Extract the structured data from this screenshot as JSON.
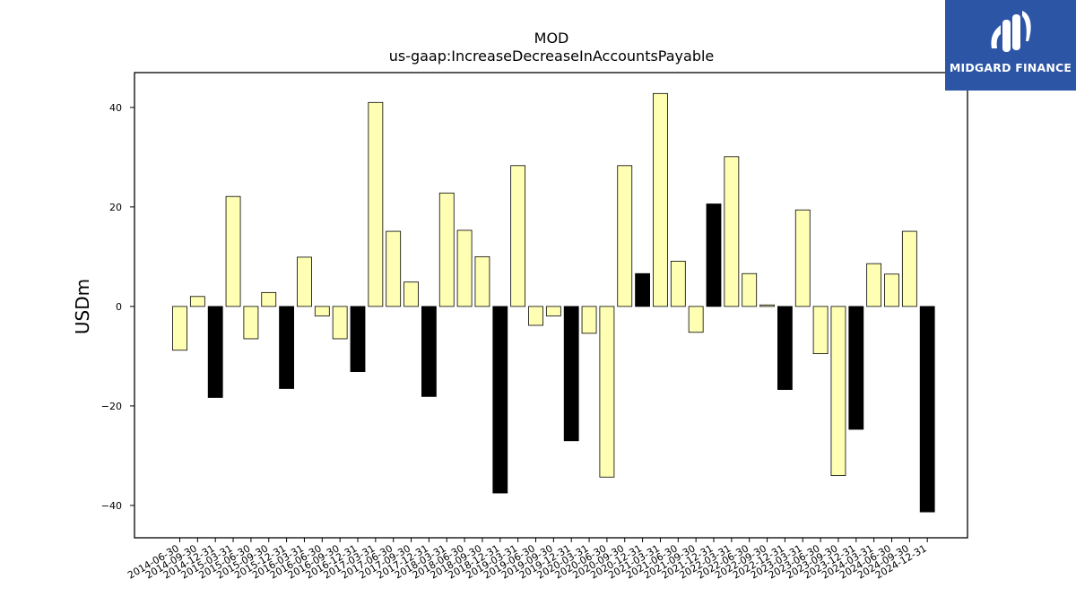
{
  "chart_data": {
    "type": "bar",
    "title": "MOD",
    "subtitle": "us-gaap:IncreaseDecreaseInAccountsPayable",
    "xlabel": "",
    "ylabel": "USDm",
    "ylim": [
      -46.5,
      47
    ],
    "yticks": [
      -40,
      -20,
      0,
      20,
      40
    ],
    "grid": false,
    "categories": [
      "2014-06-30",
      "2014-09-30",
      "2014-12-31",
      "2015-03-31",
      "2015-06-30",
      "2015-09-30",
      "2015-12-31",
      "2016-03-31",
      "2016-06-30",
      "2016-09-30",
      "2016-12-31",
      "2017-03-31",
      "2017-06-30",
      "2017-09-30",
      "2017-12-31",
      "2018-03-31",
      "2018-06-30",
      "2018-09-30",
      "2018-12-31",
      "2019-03-31",
      "2019-06-30",
      "2019-09-30",
      "2019-12-31",
      "2020-03-31",
      "2020-06-30",
      "2020-09-30",
      "2020-12-31",
      "2021-03-31",
      "2021-06-30",
      "2021-09-30",
      "2021-12-31",
      "2022-03-31",
      "2022-06-30",
      "2022-09-30",
      "2022-12-31",
      "2023-03-31",
      "2023-06-30",
      "2023-09-30",
      "2023-12-31",
      "2024-03-31",
      "2024-06-30",
      "2024-09-30",
      "2024-12-31"
    ],
    "values": [
      -8.8,
      2.0,
      -18.3,
      22.1,
      -6.5,
      2.8,
      -16.5,
      9.9,
      -1.9,
      -6.5,
      -13.1,
      41.0,
      15.1,
      4.9,
      -18.1,
      22.8,
      15.3,
      10.0,
      -37.5,
      28.3,
      -3.8,
      -1.9,
      -27.0,
      -5.4,
      -34.3,
      28.3,
      6.6,
      42.8,
      9.1,
      -5.2,
      20.6,
      30.1,
      6.6,
      0.3,
      -16.7,
      19.4,
      -9.5,
      -34.0,
      -24.7,
      8.6,
      6.5,
      15.1,
      -41.3
    ],
    "highlight": [
      false,
      false,
      true,
      false,
      false,
      false,
      true,
      false,
      false,
      false,
      true,
      false,
      false,
      false,
      true,
      false,
      false,
      false,
      true,
      false,
      false,
      false,
      true,
      false,
      false,
      false,
      true,
      false,
      false,
      false,
      true,
      false,
      false,
      false,
      true,
      false,
      false,
      false,
      true,
      false,
      false,
      false,
      true
    ],
    "colors": {
      "normal": "#ffffb3",
      "highlight": "#000000",
      "edge": "#000000"
    }
  },
  "logo": {
    "text": "MIDGARD FINANCE",
    "background": "#2c55a6"
  }
}
